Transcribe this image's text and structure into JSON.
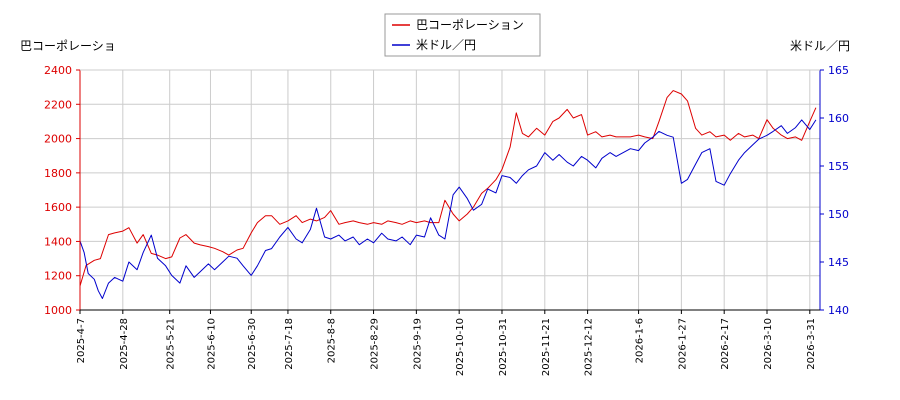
{
  "chart_data": {
    "type": "line",
    "legend": {
      "placement": "top-center",
      "entries": [
        {
          "label": "巴コーポレーション",
          "color": "#dd0000"
        },
        {
          "label": "米ドル／円",
          "color": "#0000cc"
        }
      ]
    },
    "left_axis": {
      "label": "巴コーポレーショ",
      "color": "#dd0000",
      "range": [
        1000,
        2400
      ],
      "ticks": [
        "1000",
        "1200",
        "1400",
        "1600",
        "1800",
        "2000",
        "2200",
        "2400"
      ]
    },
    "right_axis": {
      "label": "米ドル／円",
      "color": "#0000cc",
      "range": [
        140,
        165
      ],
      "ticks": [
        "140",
        "145",
        "150",
        "155",
        "160",
        "165"
      ]
    },
    "x_axis": {
      "range": [
        "2025-04-07",
        "2026-04-05"
      ],
      "ticks": [
        "2025-4-7",
        "2025-4-28",
        "2025-5-21",
        "2025-6-10",
        "2025-6-30",
        "2025-7-18",
        "2025-8-8",
        "2025-8-29",
        "2025-9-19",
        "2025-10-10",
        "2025-10-31",
        "2025-11-21",
        "2025-12-12",
        "2026-1-6",
        "2026-1-27",
        "2026-2-17",
        "2026-3-10",
        "2026-3-31"
      ]
    },
    "grid": true,
    "series": [
      {
        "name": "巴コーポレーション",
        "axis": "left",
        "color": "#dd0000",
        "points": [
          [
            "2025-04-07",
            1140
          ],
          [
            "2025-04-10",
            1260
          ],
          [
            "2025-04-14",
            1290
          ],
          [
            "2025-04-17",
            1300
          ],
          [
            "2025-04-21",
            1440
          ],
          [
            "2025-04-24",
            1450
          ],
          [
            "2025-04-28",
            1460
          ],
          [
            "2025-05-01",
            1480
          ],
          [
            "2025-05-05",
            1390
          ],
          [
            "2025-05-08",
            1440
          ],
          [
            "2025-05-12",
            1330
          ],
          [
            "2025-05-15",
            1320
          ],
          [
            "2025-05-19",
            1300
          ],
          [
            "2025-05-22",
            1310
          ],
          [
            "2025-05-26",
            1420
          ],
          [
            "2025-05-29",
            1440
          ],
          [
            "2025-06-02",
            1390
          ],
          [
            "2025-06-05",
            1380
          ],
          [
            "2025-06-09",
            1370
          ],
          [
            "2025-06-12",
            1360
          ],
          [
            "2025-06-16",
            1340
          ],
          [
            "2025-06-19",
            1320
          ],
          [
            "2025-06-23",
            1350
          ],
          [
            "2025-06-26",
            1360
          ],
          [
            "2025-06-30",
            1450
          ],
          [
            "2025-07-03",
            1510
          ],
          [
            "2025-07-07",
            1550
          ],
          [
            "2025-07-10",
            1550
          ],
          [
            "2025-07-14",
            1500
          ],
          [
            "2025-07-18",
            1520
          ],
          [
            "2025-07-22",
            1550
          ],
          [
            "2025-07-25",
            1510
          ],
          [
            "2025-07-29",
            1530
          ],
          [
            "2025-08-01",
            1520
          ],
          [
            "2025-08-05",
            1540
          ],
          [
            "2025-08-08",
            1580
          ],
          [
            "2025-08-12",
            1500
          ],
          [
            "2025-08-15",
            1510
          ],
          [
            "2025-08-19",
            1520
          ],
          [
            "2025-08-22",
            1510
          ],
          [
            "2025-08-26",
            1500
          ],
          [
            "2025-08-29",
            1510
          ],
          [
            "2025-09-02",
            1500
          ],
          [
            "2025-09-05",
            1520
          ],
          [
            "2025-09-09",
            1510
          ],
          [
            "2025-09-12",
            1500
          ],
          [
            "2025-09-16",
            1520
          ],
          [
            "2025-09-19",
            1510
          ],
          [
            "2025-09-23",
            1520
          ],
          [
            "2025-09-26",
            1510
          ],
          [
            "2025-09-30",
            1510
          ],
          [
            "2025-10-03",
            1640
          ],
          [
            "2025-10-07",
            1560
          ],
          [
            "2025-10-10",
            1520
          ],
          [
            "2025-10-14",
            1560
          ],
          [
            "2025-10-17",
            1600
          ],
          [
            "2025-10-21",
            1680
          ],
          [
            "2025-10-24",
            1710
          ],
          [
            "2025-10-28",
            1760
          ],
          [
            "2025-10-31",
            1820
          ],
          [
            "2025-11-04",
            1950
          ],
          [
            "2025-11-07",
            2150
          ],
          [
            "2025-11-10",
            2030
          ],
          [
            "2025-11-13",
            2010
          ],
          [
            "2025-11-17",
            2060
          ],
          [
            "2025-11-21",
            2020
          ],
          [
            "2025-11-25",
            2100
          ],
          [
            "2025-11-28",
            2120
          ],
          [
            "2025-12-02",
            2170
          ],
          [
            "2025-12-05",
            2120
          ],
          [
            "2025-12-09",
            2140
          ],
          [
            "2025-12-12",
            2020
          ],
          [
            "2025-12-16",
            2040
          ],
          [
            "2025-12-19",
            2010
          ],
          [
            "2025-12-23",
            2020
          ],
          [
            "2025-12-26",
            2010
          ],
          [
            "2026-01-02",
            2010
          ],
          [
            "2026-01-06",
            2020
          ],
          [
            "2026-01-09",
            2010
          ],
          [
            "2026-01-13",
            2000
          ],
          [
            "2026-01-16",
            2100
          ],
          [
            "2026-01-20",
            2240
          ],
          [
            "2026-01-23",
            2280
          ],
          [
            "2026-01-27",
            2260
          ],
          [
            "2026-01-30",
            2220
          ],
          [
            "2026-02-03",
            2060
          ],
          [
            "2026-02-06",
            2020
          ],
          [
            "2026-02-10",
            2040
          ],
          [
            "2026-02-13",
            2010
          ],
          [
            "2026-02-17",
            2020
          ],
          [
            "2026-02-20",
            1990
          ],
          [
            "2026-02-24",
            2030
          ],
          [
            "2026-02-27",
            2010
          ],
          [
            "2026-03-03",
            2020
          ],
          [
            "2026-03-06",
            2000
          ],
          [
            "2026-03-10",
            2110
          ],
          [
            "2026-03-13",
            2060
          ],
          [
            "2026-03-17",
            2020
          ],
          [
            "2026-03-20",
            2000
          ],
          [
            "2026-03-24",
            2010
          ],
          [
            "2026-03-27",
            1990
          ],
          [
            "2026-03-31",
            2100
          ],
          [
            "2026-04-03",
            2180
          ]
        ]
      },
      {
        "name": "米ドル／円",
        "axis": "right",
        "color": "#0000cc",
        "points": [
          [
            "2025-04-07",
            147.2
          ],
          [
            "2025-04-09",
            146.0
          ],
          [
            "2025-04-11",
            143.8
          ],
          [
            "2025-04-14",
            143.2
          ],
          [
            "2025-04-16",
            142.0
          ],
          [
            "2025-04-18",
            141.2
          ],
          [
            "2025-04-21",
            142.8
          ],
          [
            "2025-04-24",
            143.4
          ],
          [
            "2025-04-28",
            143.0
          ],
          [
            "2025-05-01",
            145.0
          ],
          [
            "2025-05-05",
            144.2
          ],
          [
            "2025-05-08",
            146.0
          ],
          [
            "2025-05-12",
            147.8
          ],
          [
            "2025-05-15",
            145.4
          ],
          [
            "2025-05-19",
            144.6
          ],
          [
            "2025-05-22",
            143.6
          ],
          [
            "2025-05-26",
            142.8
          ],
          [
            "2025-05-29",
            144.6
          ],
          [
            "2025-06-02",
            143.4
          ],
          [
            "2025-06-05",
            144.0
          ],
          [
            "2025-06-09",
            144.8
          ],
          [
            "2025-06-12",
            144.2
          ],
          [
            "2025-06-16",
            145.0
          ],
          [
            "2025-06-19",
            145.6
          ],
          [
            "2025-06-23",
            145.4
          ],
          [
            "2025-06-26",
            144.6
          ],
          [
            "2025-06-30",
            143.6
          ],
          [
            "2025-07-03",
            144.6
          ],
          [
            "2025-07-07",
            146.2
          ],
          [
            "2025-07-10",
            146.4
          ],
          [
            "2025-07-14",
            147.6
          ],
          [
            "2025-07-18",
            148.6
          ],
          [
            "2025-07-22",
            147.4
          ],
          [
            "2025-07-25",
            147.0
          ],
          [
            "2025-07-29",
            148.4
          ],
          [
            "2025-08-01",
            150.6
          ],
          [
            "2025-08-05",
            147.6
          ],
          [
            "2025-08-08",
            147.4
          ],
          [
            "2025-08-12",
            147.8
          ],
          [
            "2025-08-15",
            147.2
          ],
          [
            "2025-08-19",
            147.6
          ],
          [
            "2025-08-22",
            146.8
          ],
          [
            "2025-08-26",
            147.4
          ],
          [
            "2025-08-29",
            147.0
          ],
          [
            "2025-09-02",
            148.0
          ],
          [
            "2025-09-05",
            147.4
          ],
          [
            "2025-09-09",
            147.2
          ],
          [
            "2025-09-12",
            147.6
          ],
          [
            "2025-09-16",
            146.8
          ],
          [
            "2025-09-19",
            147.8
          ],
          [
            "2025-09-23",
            147.6
          ],
          [
            "2025-09-26",
            149.6
          ],
          [
            "2025-09-30",
            147.8
          ],
          [
            "2025-10-03",
            147.4
          ],
          [
            "2025-10-07",
            152.0
          ],
          [
            "2025-10-10",
            152.8
          ],
          [
            "2025-10-14",
            151.6
          ],
          [
            "2025-10-17",
            150.4
          ],
          [
            "2025-10-21",
            151.0
          ],
          [
            "2025-10-24",
            152.6
          ],
          [
            "2025-10-28",
            152.2
          ],
          [
            "2025-10-31",
            154.0
          ],
          [
            "2025-11-04",
            153.8
          ],
          [
            "2025-11-07",
            153.2
          ],
          [
            "2025-11-10",
            154.0
          ],
          [
            "2025-11-13",
            154.6
          ],
          [
            "2025-11-17",
            155.0
          ],
          [
            "2025-11-21",
            156.4
          ],
          [
            "2025-11-25",
            155.6
          ],
          [
            "2025-11-28",
            156.2
          ],
          [
            "2025-12-02",
            155.4
          ],
          [
            "2025-12-05",
            155.0
          ],
          [
            "2025-12-09",
            156.0
          ],
          [
            "2025-12-12",
            155.6
          ],
          [
            "2025-12-16",
            154.8
          ],
          [
            "2025-12-19",
            155.8
          ],
          [
            "2025-12-23",
            156.4
          ],
          [
            "2025-12-26",
            156.0
          ],
          [
            "2026-01-02",
            156.8
          ],
          [
            "2026-01-06",
            156.6
          ],
          [
            "2026-01-09",
            157.4
          ],
          [
            "2026-01-13",
            158.0
          ],
          [
            "2026-01-16",
            158.6
          ],
          [
            "2026-01-20",
            158.2
          ],
          [
            "2026-01-23",
            158.0
          ],
          [
            "2026-01-27",
            153.2
          ],
          [
            "2026-01-30",
            153.6
          ],
          [
            "2026-02-03",
            155.2
          ],
          [
            "2026-02-06",
            156.4
          ],
          [
            "2026-02-10",
            156.8
          ],
          [
            "2026-02-13",
            153.4
          ],
          [
            "2026-02-17",
            153.0
          ],
          [
            "2026-02-20",
            154.2
          ],
          [
            "2026-02-24",
            155.6
          ],
          [
            "2026-02-27",
            156.4
          ],
          [
            "2026-03-03",
            157.2
          ],
          [
            "2026-03-06",
            157.8
          ],
          [
            "2026-03-10",
            158.2
          ],
          [
            "2026-03-13",
            158.6
          ],
          [
            "2026-03-17",
            159.2
          ],
          [
            "2026-03-20",
            158.4
          ],
          [
            "2026-03-24",
            159.0
          ],
          [
            "2026-03-27",
            159.8
          ],
          [
            "2026-03-31",
            158.8
          ],
          [
            "2026-04-03",
            159.8
          ]
        ]
      }
    ]
  }
}
